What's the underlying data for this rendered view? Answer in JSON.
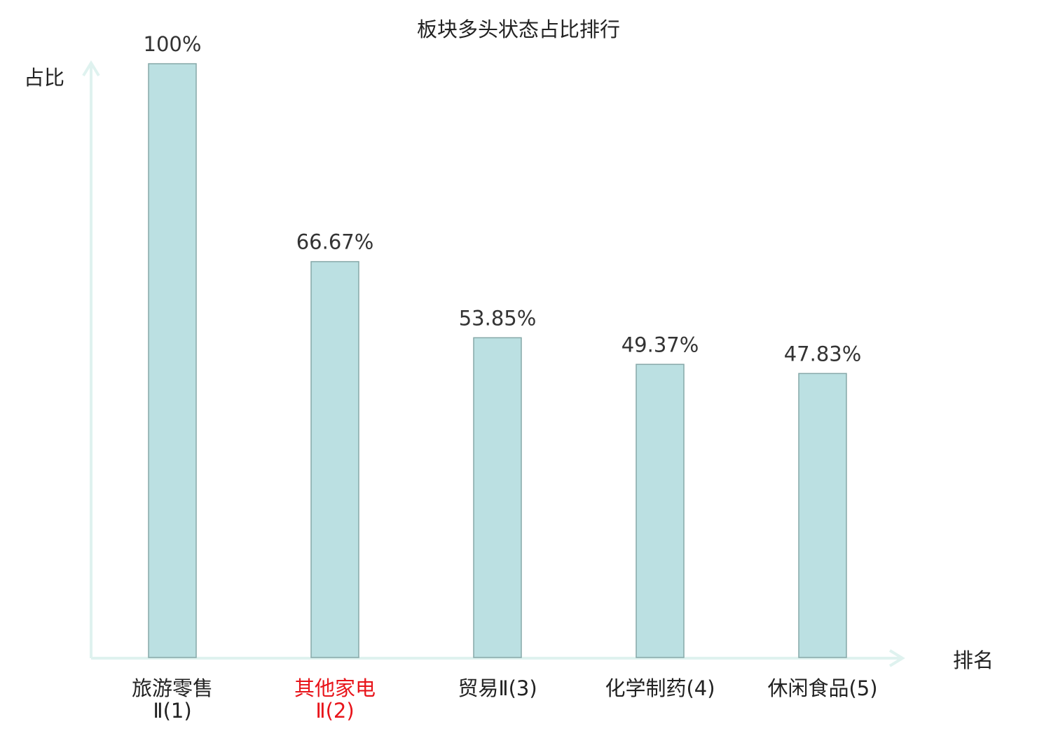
{
  "chart_data": {
    "type": "bar",
    "title": "板块多头状态占比排行",
    "xlabel": "排名",
    "ylabel": "占比",
    "categories": [
      "旅游零售Ⅱ(1)",
      "其他家电Ⅱ(2)",
      "贸易Ⅱ(3)",
      "化学制药(4)",
      "休闲食品(5)"
    ],
    "values": [
      100,
      66.67,
      53.85,
      49.37,
      47.83
    ],
    "value_labels": [
      "100%",
      "66.67%",
      "53.85%",
      "49.37%",
      "47.83%"
    ],
    "ylim": [
      0,
      100
    ],
    "grid": false,
    "highlight_index": 1
  },
  "colors": {
    "bar_fill": "#bbe0e2",
    "bar_stroke": "#86a8a8",
    "axis": "#dff2ef",
    "text": "#222222",
    "value_text": "#333333",
    "highlight_text": "#e8141a"
  }
}
